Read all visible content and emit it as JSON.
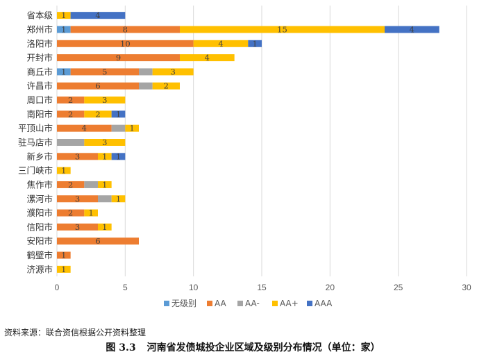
{
  "chart_data": {
    "type": "bar",
    "stacked": true,
    "orientation": "horizontal",
    "categories": [
      "省本级",
      "郑州市",
      "洛阳市",
      "开封市",
      "商丘市",
      "许昌市",
      "周口市",
      "南阳市",
      "平顶山市",
      "驻马店市",
      "新乡市",
      "三门峡市",
      "焦作市",
      "漯河市",
      "濮阳市",
      "信阳市",
      "安阳市",
      "鹤壁市",
      "济源市"
    ],
    "series": [
      {
        "name": "无级别",
        "color": "#5B9BD5",
        "values": [
          0,
          1,
          0,
          0,
          1,
          0,
          0,
          0,
          0,
          0,
          0,
          0,
          0,
          0,
          0,
          0,
          0,
          0,
          0
        ]
      },
      {
        "name": "AA",
        "color": "#ED7D31",
        "values": [
          0,
          8,
          10,
          9,
          5,
          6,
          2,
          2,
          4,
          0,
          3,
          0,
          2,
          3,
          2,
          3,
          6,
          1,
          0
        ]
      },
      {
        "name": "AA-",
        "color": "#A5A5A5",
        "values": [
          0,
          0,
          0,
          0,
          1,
          1,
          0,
          0,
          1,
          2,
          0,
          0,
          1,
          1,
          0,
          0,
          0,
          0,
          0
        ]
      },
      {
        "name": "AA+",
        "color": "#FFC000",
        "values": [
          1,
          15,
          4,
          4,
          3,
          2,
          3,
          2,
          1,
          3,
          1,
          1,
          1,
          1,
          1,
          1,
          0,
          0,
          1
        ]
      },
      {
        "name": "AAA",
        "color": "#4472C4",
        "values": [
          4,
          4,
          1,
          0,
          0,
          0,
          0,
          1,
          0,
          0,
          1,
          0,
          0,
          0,
          0,
          0,
          0,
          0,
          0
        ]
      }
    ],
    "labels": [
      [
        "",
        "1",
        "",
        "",
        "1",
        "",
        "",
        "",
        "",
        "",
        "",
        "",
        "",
        "",
        "",
        "",
        "",
        "",
        ""
      ],
      [
        "",
        "8",
        "10",
        "9",
        "5",
        "6",
        "2",
        "2",
        "4",
        "",
        "3",
        "",
        "2",
        "3",
        "2",
        "3",
        "6",
        "1",
        ""
      ],
      [
        "",
        "",
        "",
        "",
        "",
        "",
        "",
        "",
        "",
        "",
        "",
        "",
        "",
        "",
        "",
        "",
        "",
        "",
        ""
      ],
      [
        "1",
        "15",
        "4",
        "4",
        "3",
        "2",
        "3",
        "2",
        "1",
        "3",
        "1",
        "1",
        "1",
        "1",
        "1",
        "1",
        "",
        "",
        "1"
      ],
      [
        "4",
        "4",
        "1",
        "",
        "",
        "",
        "",
        "1",
        "",
        "",
        "1",
        "",
        "",
        "",
        "",
        "",
        "",
        "",
        ""
      ]
    ],
    "x_ticks": [
      "0",
      "5",
      "10",
      "15",
      "20",
      "25",
      "30"
    ],
    "xlim": [
      0,
      30
    ],
    "grid": "vertical",
    "legend": "bottom"
  },
  "source_note": "资料来源：联合资信根据公开资料整理",
  "caption": {
    "number": "图 3.3",
    "text": "河南省发债城投企业区域及级别分布情况（单位：家）"
  }
}
